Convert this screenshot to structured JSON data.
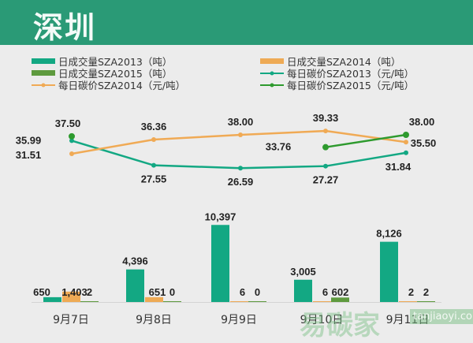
{
  "header": {
    "title": "深圳"
  },
  "chart_data": {
    "type": "bar+line",
    "categories": [
      "9月7日",
      "9月8日",
      "9月9日",
      "9月10日",
      "9月11日"
    ],
    "bar_series": [
      {
        "name": "日成交量SZA2013（吨）",
        "color": "#13a883",
        "values": [
          650,
          4396,
          10397,
          3005,
          8126
        ],
        "labels": [
          "650",
          "4,396",
          "10,397",
          "3,005",
          "8,126"
        ]
      },
      {
        "name": "日成交量SZA2014（吨）",
        "color": "#eeaa55",
        "values": [
          1403,
          651,
          6,
          6,
          2
        ],
        "labels": [
          "1,403",
          "651",
          "6",
          "6",
          "2"
        ]
      },
      {
        "name": "日成交量SZA2015（吨）",
        "color": "#5e9a3e",
        "values": [
          2,
          0,
          0,
          602,
          2
        ],
        "labels": [
          "2",
          "0",
          "0",
          "602",
          "2"
        ]
      }
    ],
    "line_series": [
      {
        "name": "每日碳价SZA2013（元/吨）",
        "color": "#13a883",
        "values": [
          35.99,
          27.55,
          26.59,
          27.27,
          31.84
        ],
        "labels": [
          "35.99",
          "27.55",
          "26.59",
          "27.27",
          "31.84"
        ]
      },
      {
        "name": "每日碳价SZA2014（元/吨）",
        "color": "#f0aa55",
        "values": [
          31.51,
          36.36,
          38.0,
          39.33,
          35.5
        ],
        "labels": [
          "31.51",
          "36.36",
          "38.00",
          "39.33",
          "35.50"
        ]
      },
      {
        "name": "每日碳价SZA2015（元/吨）",
        "color": "#2e9a2e",
        "values": [
          37.5,
          null,
          null,
          33.76,
          38.0
        ],
        "labels": [
          "37.50",
          "",
          "",
          "33.76",
          "38.00"
        ]
      }
    ],
    "legend_position": "top",
    "grid": false
  },
  "watermark": {
    "text": "易碳家",
    "site": "tanjiaoyi.com"
  }
}
